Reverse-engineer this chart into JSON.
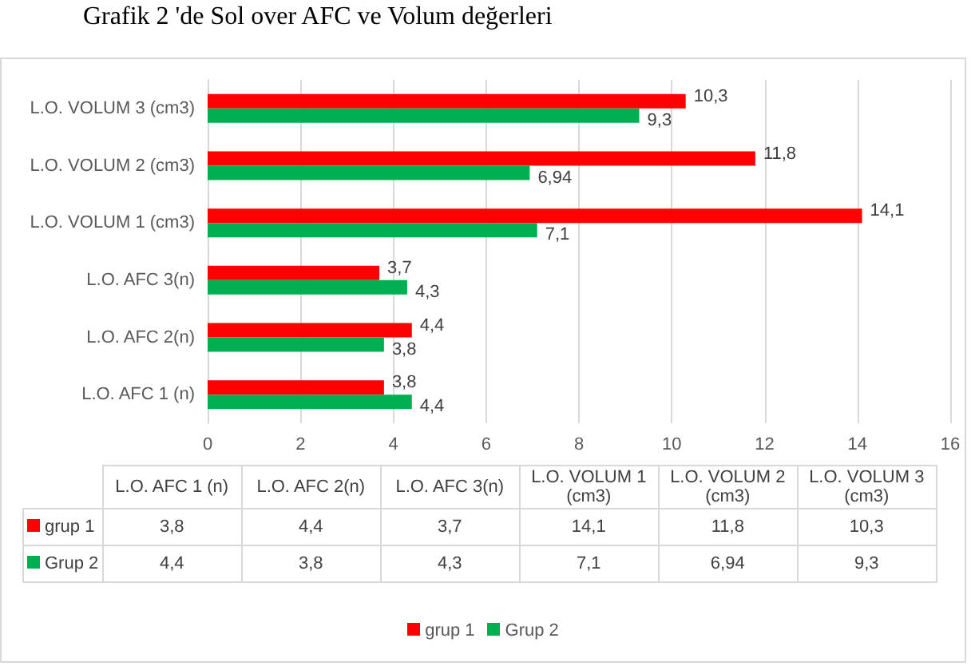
{
  "chart_data": {
    "type": "bar",
    "orientation": "horizontal",
    "title": "Grafik 2 'de Sol over AFC ve Volum değerleri",
    "categories": [
      "L.O. VOLUM 3 (cm3)",
      "L.O. VOLUM 2 (cm3)",
      "L.O. VOLUM 1 (cm3)",
      "L.O. AFC 3(n)",
      "L.O. AFC 2(n)",
      "L.O. AFC 1 (n)"
    ],
    "series": [
      {
        "name": "grup 1",
        "color": "#ff0000",
        "values": [
          10.3,
          11.8,
          14.1,
          3.7,
          4.4,
          3.8
        ],
        "value_labels": [
          "10,3",
          "11,8",
          "14,1",
          "3,7",
          "4,4",
          "3,8"
        ]
      },
      {
        "name": "Grup 2",
        "color": "#00b050",
        "values": [
          9.3,
          6.94,
          7.1,
          4.3,
          3.8,
          4.4
        ],
        "value_labels": [
          "9,3",
          "6,94",
          "7,1",
          "4,3",
          "3,8",
          "4,4"
        ]
      }
    ],
    "xlim": [
      0,
      16
    ],
    "xticks": [
      0,
      2,
      4,
      6,
      8,
      10,
      12,
      14,
      16
    ],
    "grid": "x",
    "legend": "bottom"
  }
}
